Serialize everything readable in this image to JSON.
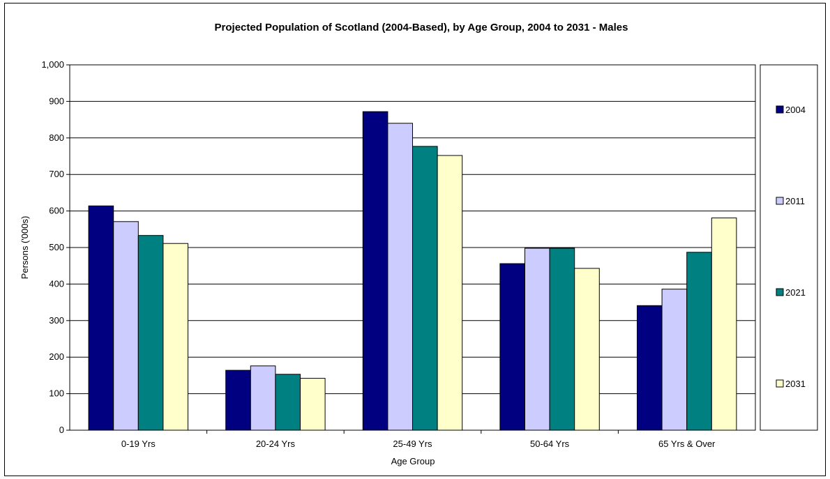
{
  "chart_data": {
    "type": "bar",
    "title": "Projected Population of Scotland (2004-Based), by Age Group, 2004 to 2031 - Males",
    "xlabel": "Age Group",
    "ylabel": "Persons ('000s)",
    "ylim": [
      0,
      1000
    ],
    "yticks": [
      "0",
      "100",
      "200",
      "300",
      "400",
      "500",
      "600",
      "700",
      "800",
      "900",
      "1,000"
    ],
    "categories": [
      "0-19 Yrs",
      "20-24 Yrs",
      "25-49 Yrs",
      "50-64 Yrs",
      "65 Yrs & Over"
    ],
    "grid": true,
    "legend_position": "right",
    "series": [
      {
        "name": "2004",
        "color": "#000080",
        "values": [
          614,
          164,
          872,
          456,
          341
        ]
      },
      {
        "name": "2011",
        "color": "#ccccff",
        "values": [
          571,
          176,
          840,
          498,
          386
        ]
      },
      {
        "name": "2021",
        "color": "#008080",
        "values": [
          533,
          153,
          777,
          498,
          487
        ]
      },
      {
        "name": "2031",
        "color": "#ffffcc",
        "values": [
          511,
          142,
          752,
          443,
          581
        ]
      }
    ]
  }
}
